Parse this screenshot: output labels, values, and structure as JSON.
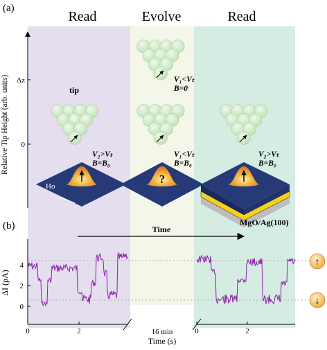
{
  "panel_a": {
    "label": "(a)",
    "phase_titles": [
      "Read",
      "Evolve",
      "Read"
    ],
    "y_axis_label": "Relative Tip Height (arb. units)",
    "y_ticks": [
      "Δz",
      "0"
    ],
    "tip_label": "tip",
    "atom_label": "Ho",
    "substrate_label": "MgO/Ag(100)",
    "conditions": {
      "read_left": [
        "V₂>Vₜ",
        "B=B₀"
      ],
      "evolve_top": [
        "V₁<Vₜ",
        "B=0"
      ],
      "evolve_bottom": [
        "V₁<Vₜ",
        "B=B₀"
      ],
      "read_right": [
        "V₂>Vₜ",
        "B=B₀"
      ]
    },
    "unknown_state_glyph": "?",
    "colors": {
      "read_left_bg": "#e4deef",
      "evolve_bg": "#f4f6ea",
      "read_right_bg": "#d5ece3",
      "tip_fill": "#c8e6c0",
      "surface": "#263a78",
      "substrate_gold": "#f2d21a",
      "substrate_gray": "#bdbdbd"
    }
  },
  "panel_b": {
    "label": "(b)",
    "time_arrow_label": "Time",
    "y_axis_label": "ΔI (pA)",
    "y_ticks": [
      "0",
      "2",
      "4"
    ],
    "x_ticks_left": [
      "0",
      "2"
    ],
    "x_ticks_right": [
      "0",
      "2"
    ],
    "break_label": "16 min",
    "x_axis_label": "Time (s)",
    "state_up_glyph": "↑",
    "state_down_glyph": "↓",
    "trace_color": "#8b1fa6"
  }
}
